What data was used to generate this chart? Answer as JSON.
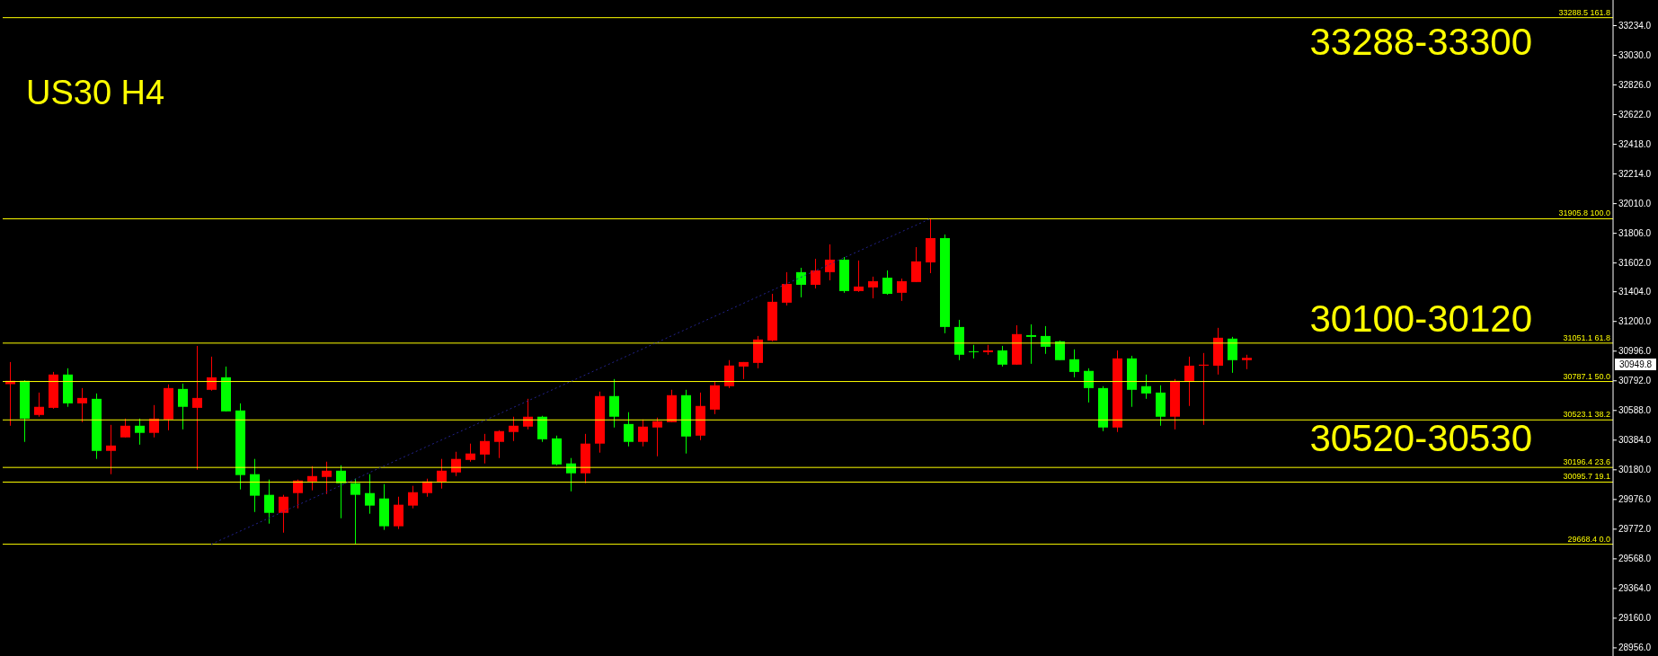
{
  "chart_data": {
    "type": "candlestick",
    "title": "US30 H4",
    "annotations": [
      "33288-33300",
      "30100-30120",
      "30520-30530",
      "30949.8"
    ],
    "categories": [
      null,
      null,
      null,
      null,
      null,
      null,
      null,
      null,
      null,
      null,
      null,
      null,
      null,
      null,
      null,
      null,
      null,
      null,
      null,
      null,
      null,
      null,
      null,
      null,
      null,
      null,
      null,
      null,
      null,
      null,
      null,
      null,
      null,
      null,
      null,
      null,
      null,
      null,
      null,
      null,
      null,
      null,
      null,
      null,
      null,
      null,
      null,
      null,
      null,
      null,
      null,
      null,
      null,
      null,
      null,
      null,
      null,
      null,
      null,
      null,
      null,
      null,
      null,
      null,
      null,
      null,
      null,
      null,
      null,
      null,
      null,
      null,
      null,
      null,
      null,
      null,
      null,
      null,
      null,
      null,
      null,
      null,
      null,
      null,
      null,
      null,
      null,
      null,
      null,
      null,
      null,
      null,
      null,
      null,
      null,
      null,
      null,
      null,
      null,
      null,
      null,
      null,
      null,
      null,
      null,
      null,
      null,
      null,
      null,
      null,
      null,
      null
    ],
    "ohlc": [
      [
        30769,
        30921,
        30483,
        30792
      ],
      [
        30792,
        30796,
        30372,
        30532
      ],
      [
        30557,
        30711,
        30545,
        30613
      ],
      [
        30606,
        30853,
        30600,
        30835
      ],
      [
        30835,
        30878,
        30613,
        30637
      ],
      [
        30637,
        30742,
        30508,
        30674
      ],
      [
        30668,
        30705,
        30255,
        30310
      ],
      [
        30310,
        30489,
        30150,
        30347
      ],
      [
        30403,
        30532,
        30403,
        30483
      ],
      [
        30483,
        30532,
        30353,
        30434
      ],
      [
        30434,
        30625,
        30403,
        30532
      ],
      [
        30526,
        30767,
        30452,
        30742
      ],
      [
        30736,
        30773,
        30458,
        30613
      ],
      [
        30606,
        31032,
        30181,
        30674
      ],
      [
        30730,
        30958,
        30724,
        30816
      ],
      [
        30816,
        30890,
        30582,
        30582
      ],
      [
        30588,
        30637,
        30045,
        30144
      ],
      [
        30150,
        30255,
        29890,
        30002
      ],
      [
        30008,
        30113,
        29810,
        29884
      ],
      [
        29884,
        30008,
        29748,
        29995
      ],
      [
        30020,
        30113,
        29915,
        30106
      ],
      [
        30100,
        30205,
        30039,
        30137
      ],
      [
        30131,
        30236,
        30014,
        30174
      ],
      [
        30174,
        30211,
        29847,
        30088
      ],
      [
        30088,
        30119,
        29668.4,
        30008
      ],
      [
        30020,
        30150,
        29878,
        29934
      ],
      [
        29983,
        30082,
        29767,
        29792
      ],
      [
        29792,
        29995,
        29773,
        29940
      ],
      [
        29934,
        30070,
        29915,
        30026
      ],
      [
        30020,
        30119,
        29995,
        30100
      ],
      [
        30094,
        30255,
        30051,
        30174
      ],
      [
        30162,
        30304,
        30137,
        30255
      ],
      [
        30248,
        30360,
        30236,
        30292
      ],
      [
        30285,
        30427,
        30224,
        30378
      ],
      [
        30372,
        30452,
        30261,
        30446
      ],
      [
        30440,
        30545,
        30378,
        30483
      ],
      [
        30477,
        30668,
        30458,
        30545
      ],
      [
        30545,
        30551,
        30372,
        30390
      ],
      [
        30396,
        30415,
        30211,
        30217
      ],
      [
        30224,
        30261,
        30032,
        30156
      ],
      [
        30156,
        30427,
        30088,
        30360
      ],
      [
        30360,
        30718,
        30298,
        30687
      ],
      [
        30687,
        30804,
        30471,
        30545
      ],
      [
        30495,
        30576,
        30341,
        30372
      ],
      [
        30372,
        30526,
        30341,
        30477
      ],
      [
        30471,
        30539,
        30273,
        30514
      ],
      [
        30508,
        30730,
        30508,
        30693
      ],
      [
        30693,
        30730,
        30292,
        30409
      ],
      [
        30415,
        30711,
        30384,
        30619
      ],
      [
        30594,
        30785,
        30563,
        30761
      ],
      [
        30755,
        30934,
        30742,
        30897
      ],
      [
        30890,
        30921,
        30804,
        30921
      ],
      [
        30915,
        31100,
        30878,
        31076
      ],
      [
        31069,
        31390,
        31063,
        31335
      ],
      [
        31329,
        31539,
        31310,
        31458
      ],
      [
        31539,
        31569,
        31366,
        31452
      ],
      [
        31452,
        31631,
        31427,
        31551
      ],
      [
        31539,
        31730,
        31483,
        31625
      ],
      [
        31625,
        31643,
        31397,
        31409
      ],
      [
        31409,
        31619,
        31403,
        31440
      ],
      [
        31434,
        31508,
        31359,
        31477
      ],
      [
        31501,
        31551,
        31384,
        31390
      ],
      [
        31397,
        31495,
        31341,
        31477
      ],
      [
        31471,
        31711,
        31471,
        31613
      ],
      [
        31606,
        31905.8,
        31532,
        31773
      ],
      [
        31773,
        31798,
        31119,
        31162
      ],
      [
        31162,
        31211,
        30934,
        30971
      ],
      [
        30995,
        31039,
        30946,
        30989
      ],
      [
        30989,
        31039,
        30971,
        31001
      ],
      [
        31001,
        31032,
        30890,
        30903
      ],
      [
        30903,
        31174,
        30903,
        31113
      ],
      [
        31106,
        31180,
        30909,
        31094
      ],
      [
        31100,
        31168,
        30977,
        31026
      ],
      [
        31063,
        31069,
        30934,
        30934
      ],
      [
        30940,
        31008,
        30816,
        30853
      ],
      [
        30860,
        30878,
        30643,
        30742
      ],
      [
        30742,
        30755,
        30446,
        30471
      ],
      [
        30471,
        31001,
        30440,
        30946
      ],
      [
        30946,
        30964,
        30613,
        30730
      ],
      [
        30755,
        30835,
        30668,
        30705
      ],
      [
        30711,
        30761,
        30483,
        30545
      ],
      [
        30545,
        30804,
        30458,
        30792
      ],
      [
        30785,
        30958,
        30619,
        30896
      ],
      [
        30896,
        30983,
        30489,
        30903
      ],
      [
        30896,
        31156,
        30835,
        31088
      ],
      [
        31082,
        31094,
        30847,
        30934
      ],
      [
        30934,
        30971,
        30872,
        30949.8
      ],
      null,
      null,
      null,
      null,
      null,
      null,
      null,
      null,
      null,
      null,
      null,
      null,
      null,
      null,
      null,
      null,
      null,
      null,
      null,
      null,
      null,
      null,
      null,
      null,
      null
    ],
    "colors": [
      "#ff0000",
      "#00ff00",
      "#ff0000",
      "#ff0000",
      "#00ff00",
      "#ff0000",
      "#00ff00",
      "#ff0000",
      "#ff0000",
      "#00ff00",
      "#ff0000",
      "#ff0000",
      "#00ff00",
      "#ff0000",
      "#ff0000",
      "#00ff00",
      "#00ff00",
      "#00ff00",
      "#00ff00",
      "#ff0000",
      "#ff0000",
      "#ff0000",
      "#ff0000",
      "#00ff00",
      "#00ff00",
      "#00ff00",
      "#00ff00",
      "#ff0000",
      "#ff0000",
      "#ff0000",
      "#ff0000",
      "#ff0000",
      "#ff0000",
      "#ff0000",
      "#ff0000",
      "#ff0000",
      "#ff0000",
      "#00ff00",
      "#00ff00",
      "#00ff00",
      "#ff0000",
      "#ff0000",
      "#00ff00",
      "#00ff00",
      "#ff0000",
      "#ff0000",
      "#ff0000",
      "#00ff00",
      "#ff0000",
      "#ff0000",
      "#ff0000",
      "#ff0000",
      "#ff0000",
      "#ff0000",
      "#ff0000",
      "#00ff00",
      "#ff0000",
      "#ff0000",
      "#00ff00",
      "#ff0000",
      "#ff0000",
      "#00ff00",
      "#ff0000",
      "#ff0000",
      "#ff0000",
      "#00ff00",
      "#00ff00",
      "#00ff00",
      "#ff0000",
      "#00ff00",
      "#ff0000",
      "#00ff00",
      "#00ff00",
      "#00ff00",
      "#00ff00",
      "#00ff00",
      "#00ff00",
      "#ff0000",
      "#00ff00",
      "#00ff00",
      "#00ff00",
      "#ff0000",
      "#ff0000",
      "#ff0000",
      "#ff0000",
      "#00ff00",
      "#ff0000",
      null,
      null,
      null,
      null,
      null,
      null,
      null,
      null,
      null,
      null,
      null,
      null,
      null,
      null,
      null,
      null,
      null,
      null,
      null,
      null,
      null,
      null,
      null,
      null,
      null
    ],
    "series": [
      {
        "type": "line",
        "color": "#23238e",
        "line_style": "dotted",
        "values": [
          null,
          null,
          null,
          null,
          null,
          null,
          null,
          null,
          null,
          null,
          null,
          null,
          null,
          null,
          29668.4,
          null,
          null,
          null,
          null,
          null,
          null,
          null,
          null,
          null,
          null,
          null,
          null,
          null,
          null,
          null,
          null,
          null,
          null,
          null,
          null,
          null,
          null,
          null,
          null,
          null,
          null,
          null,
          null,
          null,
          null,
          null,
          null,
          null,
          null,
          null,
          null,
          null,
          null,
          null,
          null,
          null,
          null,
          null,
          null,
          null,
          null,
          null,
          null,
          null,
          31905.8,
          null,
          null,
          null,
          null,
          null,
          null,
          null,
          null,
          null,
          null,
          null,
          null,
          null,
          null,
          null,
          null,
          null,
          null,
          null,
          null,
          null,
          null,
          null,
          null,
          null,
          null,
          null,
          null,
          null,
          null,
          null,
          null,
          null,
          null,
          null,
          null,
          null,
          null,
          null,
          null,
          null,
          null,
          null,
          null,
          null,
          null,
          null
        ]
      }
    ],
    "ref_lines": [
      {
        "axis": "y",
        "value": 33288.5,
        "label": "33288.5 161.8",
        "color": "#ffff00"
      },
      {
        "axis": "y",
        "value": 31905.8,
        "label": "31905.8 100.0",
        "color": "#ffff00"
      },
      {
        "axis": "y",
        "value": 31051.1,
        "label": "31051.1 61.8",
        "color": "#ffff00"
      },
      {
        "axis": "y",
        "value": 30787.1,
        "label": "30787.1 50.0",
        "color": "#ffff00"
      },
      {
        "axis": "y",
        "value": 30523.1,
        "label": "30523.1 38.2",
        "color": "#ffff00"
      },
      {
        "axis": "y",
        "value": 30196.4,
        "label": "30196.4 23.6",
        "color": "#ffff00"
      },
      {
        "axis": "y",
        "value": 30095.7,
        "label": "30095.7 19.1",
        "color": "#ffff00"
      },
      {
        "axis": "y",
        "value": 29668.4,
        "label": "29668.4 0.0",
        "color": "#ffff00"
      }
    ],
    "ylim": [
      28900,
      33410
    ],
    "yticks": [
      {
        "value": 28956,
        "label": "28956.0"
      },
      {
        "value": 29160,
        "label": "29160.0"
      },
      {
        "value": 29364,
        "label": "29364.0"
      },
      {
        "value": 29568,
        "label": "29568.0"
      },
      {
        "value": 29772,
        "label": "29772.0"
      },
      {
        "value": 29976,
        "label": "29976.0"
      },
      {
        "value": 30180,
        "label": "30180.0"
      },
      {
        "value": 30384,
        "label": "30384.0"
      },
      {
        "value": 30588,
        "label": "30588.0"
      },
      {
        "value": 30792,
        "label": "30792.0"
      },
      {
        "value": 30996,
        "label": "30996.0"
      },
      {
        "value": 31200,
        "label": "31200.0"
      },
      {
        "value": 31404,
        "label": "31404.0"
      },
      {
        "value": 31602,
        "label": "31602.0"
      },
      {
        "value": 31806,
        "label": "31806.0"
      },
      {
        "value": 32010,
        "label": "32010.0"
      },
      {
        "value": 32214,
        "label": "32214.0"
      },
      {
        "value": 32418,
        "label": "32418.0"
      },
      {
        "value": 32622,
        "label": "32622.0"
      },
      {
        "value": 32826,
        "label": "32826.0"
      },
      {
        "value": 33030,
        "label": "33030.0"
      },
      {
        "value": 33234,
        "label": "33234.0"
      }
    ],
    "tick_labels": "y",
    "marker": "none"
  }
}
